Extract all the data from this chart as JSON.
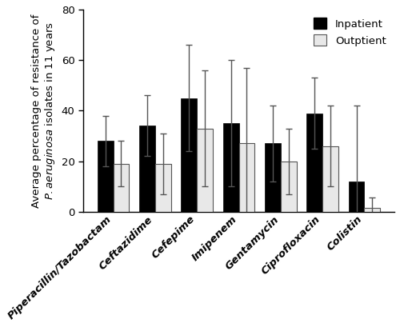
{
  "categories": [
    "Piperacillin/Tazobactam",
    "Ceftazidime",
    "Cefepime",
    "Imipenem",
    "Gentamycin",
    "Ciprofloxacin",
    "Colistin"
  ],
  "inpatient_values": [
    28,
    34,
    45,
    35,
    27,
    39,
    12
  ],
  "outpatient_values": [
    19,
    19,
    33,
    27,
    20,
    26,
    1.5
  ],
  "inpatient_errors": [
    10,
    12,
    21,
    25,
    15,
    14,
    30
  ],
  "outpatient_errors": [
    9,
    12,
    23,
    30,
    13,
    16,
    4
  ],
  "inpatient_color": "#000000",
  "outpatient_color": "#e8e8e8",
  "outpatient_edgecolor": "#555555",
  "ylabel_top": "Average percentage of resistance of",
  "ylabel_bot": "P. aeruginosa isolates in 11 years",
  "ylim": [
    0,
    80
  ],
  "yticks": [
    0,
    20,
    40,
    60,
    80
  ],
  "legend_labels": [
    "Inpatient",
    "Outptient"
  ],
  "bar_width": 0.38,
  "figsize": [
    5.0,
    4.09
  ],
  "dpi": 100,
  "background_color": "#ffffff",
  "error_capsize": 3,
  "error_color": "#555555",
  "tick_fontsize": 9.5,
  "ylabel_fontsize": 9.5
}
